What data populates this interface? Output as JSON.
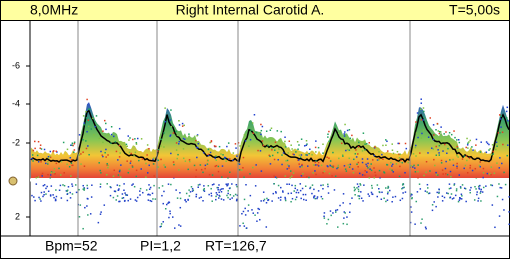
{
  "header": {
    "frequency": "8,0MHz",
    "vessel": "Right Internal Carotid A.",
    "time": "T=5,00s"
  },
  "scale": {
    "labels": [
      "-6",
      "-4",
      "-2",
      "2"
    ]
  },
  "footer": {
    "bpm": "Bpm=52",
    "pi": "PI=1,2",
    "rt": "RT=126,7"
  }
}
